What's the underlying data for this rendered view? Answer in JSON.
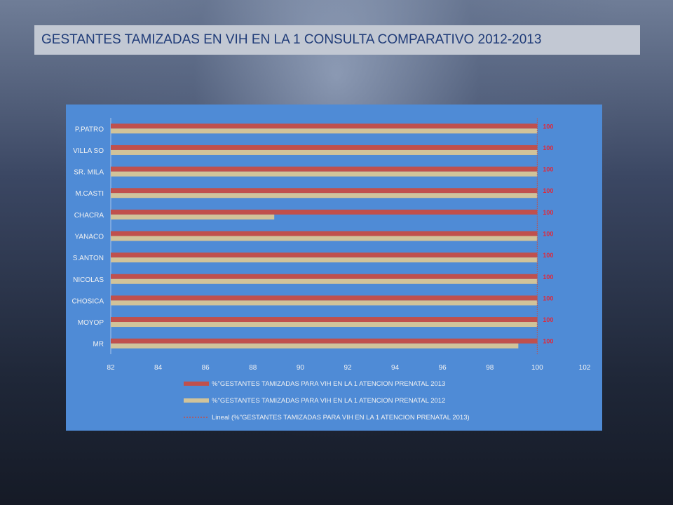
{
  "slide": {
    "title": "GESTANTES TAMIZADAS EN  VIH EN LA 1 CONSULTA COMPARATIVO 2012-2013"
  },
  "chart_data": {
    "type": "bar",
    "orientation": "horizontal",
    "categories": [
      "MR",
      "MOYOP",
      "CHOSICA",
      "NICOLAS",
      "S.ANTON",
      "YANACO",
      "CHACRA",
      "M.CASTI",
      "SR. MILA",
      "VILLA SO",
      "P.PATRO"
    ],
    "series": [
      {
        "name": "%\"GESTANTES TAMIZADAS PARA VIH EN LA 1 ATENCION PRENATAL 2013",
        "values": [
          100,
          100,
          100,
          100,
          100,
          100,
          100,
          100,
          100,
          100,
          100
        ],
        "color": "#c0504d",
        "data_labels": [
          "100",
          "100",
          "100",
          "100",
          "100",
          "100",
          "100",
          "100",
          "100",
          "100",
          "100"
        ]
      },
      {
        "name": "%\"GESTANTES TAMIZADAS PARA VIH EN LA 1 ATENCION PRENATAL 2012",
        "values": [
          99.2,
          100,
          100,
          100,
          100,
          100,
          88.9,
          100,
          100,
          100,
          100
        ],
        "color": "#d1c39a"
      }
    ],
    "trendline": {
      "name": "Lineal (%\"GESTANTES TAMIZADAS PARA VIH EN LA 1 ATENCION PRENATAL 2013)",
      "color": "#c0504d",
      "style": "dotted"
    },
    "xlim": [
      82,
      102
    ],
    "xticks": [
      "82",
      "84",
      "86",
      "88",
      "90",
      "92",
      "94",
      "96",
      "98",
      "100",
      "102"
    ],
    "grid": false,
    "legend_position": "bottom",
    "background": "#4f8bd6"
  }
}
